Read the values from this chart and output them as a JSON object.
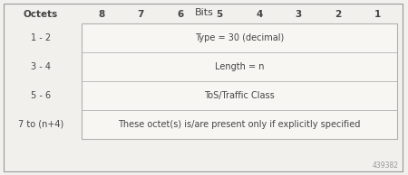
{
  "title": "Bits",
  "octets_label": "Octets",
  "bit_labels": [
    "8",
    "7",
    "6",
    "5",
    "4",
    "3",
    "2",
    "1"
  ],
  "rows": [
    {
      "octet": "1 - 2",
      "content": "Type = 30 (decimal)"
    },
    {
      "octet": "3 - 4",
      "content": "Length = n"
    },
    {
      "octet": "5 - 6",
      "content": "ToS/Traffic Class"
    },
    {
      "octet": "7 to (n+4)",
      "content": "These octet(s) is/are present only if explicitly specified"
    }
  ],
  "figure_bg": "#f2f0ed",
  "cell_bg": "#f7f6f3",
  "border_color": "#b0b0b0",
  "text_color": "#444444",
  "title_fontsize": 8,
  "label_fontsize": 7.5,
  "cell_fontsize": 7,
  "watermark": "439382",
  "outer_border_color": "#999999",
  "outer_border_lw": 0.8,
  "inner_border_lw": 0.5
}
